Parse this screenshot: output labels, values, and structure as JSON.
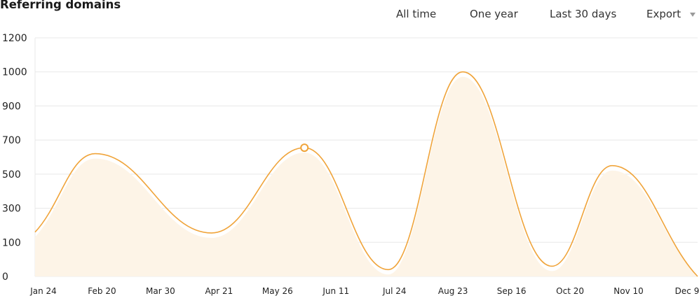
{
  "header": {
    "title": "Referring domains",
    "range_buttons": [
      "All time",
      "One year",
      "Last 30 days"
    ],
    "export_label": "Export",
    "export_caret_icon": "caret-down-icon"
  },
  "colors": {
    "line": "#f0a43a",
    "fill": "#fdf4e7",
    "grid": "#e8e8e8",
    "marker": "#f0a43a"
  },
  "chart_data": {
    "type": "area",
    "title": "Referring domains",
    "xlabel": "",
    "ylabel": "",
    "ylim": [
      0,
      1200
    ],
    "yticks": [
      0,
      100,
      300,
      500,
      700,
      900,
      1000,
      1200
    ],
    "grid": true,
    "x": [
      "Jan 24",
      "Feb 20",
      "Mar 30",
      "Apr 21",
      "May 26",
      "Jun 11",
      "Jul 24",
      "Aug 23",
      "Sep 16",
      "Oct 20",
      "Nov 10",
      "Dec 9"
    ],
    "series": [
      {
        "points": [
          {
            "x": "Jan 1",
            "y": 160
          },
          {
            "x": "Feb 3",
            "y": 620
          },
          {
            "x": "Apr 8",
            "y": 155
          },
          {
            "x": "May 29",
            "y": 655
          },
          {
            "x": "Jul 14",
            "y": 20
          },
          {
            "x": "Aug 24",
            "y": 1000
          },
          {
            "x": "Oct 12",
            "y": 30
          },
          {
            "x": "Nov 14",
            "y": 550
          },
          {
            "x": "Dec 31",
            "y": 0
          }
        ]
      }
    ],
    "highlight": {
      "x": "May 29",
      "y": 655
    }
  }
}
